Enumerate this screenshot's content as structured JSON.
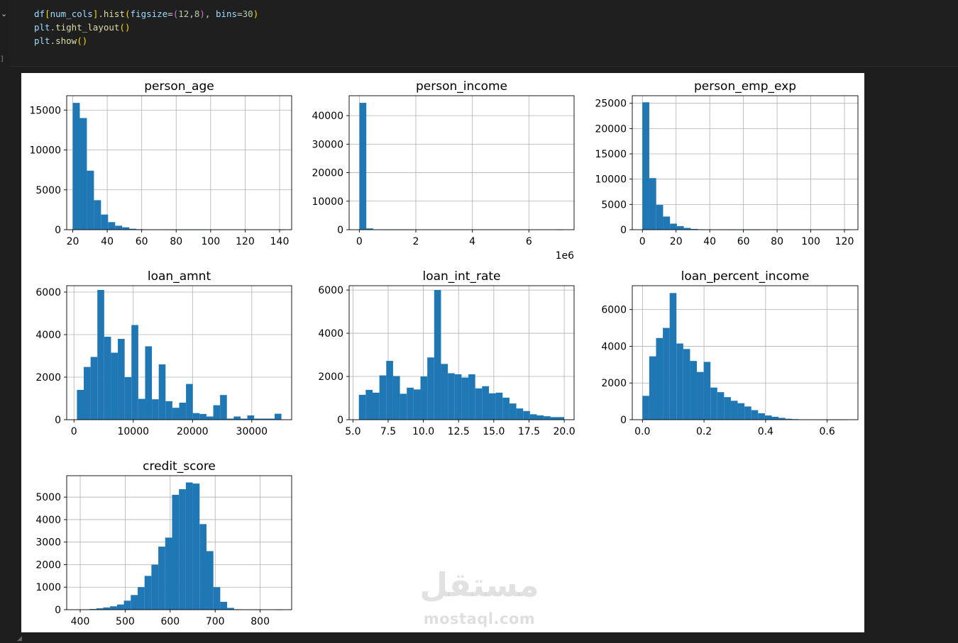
{
  "editor": {
    "exec_marker": "]",
    "code": {
      "line1": {
        "var": "df",
        "lb": "[",
        "arg": "num_cols",
        "rb": "]",
        "dot": ".",
        "func": "hist",
        "lp": "(",
        "kw1": "figsize",
        "eq1": "=",
        "tp": "(",
        "n1": "12",
        "comma1": ",",
        "n2": "8",
        "tpc": ")",
        "comma2": ", ",
        "kw2": "bins",
        "eq2": "=",
        "n3": "30",
        "rp": ")"
      },
      "line2": {
        "obj": "plt",
        "dot": ".",
        "func": "tight_layout",
        "paren": "()"
      },
      "line3": {
        "obj": "plt",
        "dot": ".",
        "func": "show",
        "paren": "()"
      }
    }
  },
  "watermark": {
    "arabic": "مستقل",
    "latin": "mostaql.com"
  },
  "colors": {
    "bar": "#1f77b4",
    "grid": "#b0b0b0",
    "axis": "#000000"
  },
  "chart_data": [
    {
      "type": "bar",
      "title": "person_age",
      "xlim": [
        16.5,
        147
      ],
      "ylim": [
        0,
        16800
      ],
      "xticks": [
        20,
        40,
        60,
        80,
        100,
        120,
        140
      ],
      "xticklabels": [
        "20",
        "40",
        "60",
        "80",
        "100",
        "120",
        "140"
      ],
      "yticks": [
        0,
        5000,
        10000,
        15000
      ],
      "yticklabels": [
        "0",
        "5000",
        "10000",
        "15000"
      ],
      "bin_start": 20,
      "bin_width": 4.1,
      "values": [
        15900,
        14000,
        7400,
        3700,
        1900,
        950,
        500,
        300,
        120,
        60,
        30,
        15,
        10,
        5,
        3,
        2,
        2,
        1,
        1,
        0,
        0,
        0,
        0,
        0,
        0,
        0,
        0,
        0,
        0,
        1
      ]
    },
    {
      "type": "bar",
      "title": "person_income",
      "x_offset_label": "1e6",
      "xlim": [
        -0.36,
        7.6
      ],
      "ylim": [
        0,
        47000
      ],
      "xticks": [
        0,
        2,
        4,
        6
      ],
      "xticklabels": [
        "0",
        "2",
        "4",
        "6"
      ],
      "yticks": [
        0,
        10000,
        20000,
        30000,
        40000
      ],
      "yticklabels": [
        "0",
        "10000",
        "20000",
        "30000",
        "40000"
      ],
      "bin_start": 0.008,
      "bin_width": 0.24,
      "values": [
        44500,
        450,
        30,
        10,
        5,
        2,
        1,
        1,
        0,
        0,
        0,
        0,
        0,
        0,
        0,
        0,
        0,
        0,
        0,
        0,
        0,
        0,
        0,
        0,
        0,
        0,
        0,
        0,
        0,
        1
      ]
    },
    {
      "type": "bar",
      "title": "person_emp_exp",
      "xlim": [
        -6,
        128
      ],
      "ylim": [
        0,
        26500
      ],
      "xticks": [
        0,
        20,
        40,
        60,
        80,
        100,
        120
      ],
      "xticklabels": [
        "0",
        "20",
        "40",
        "60",
        "80",
        "100",
        "120"
      ],
      "yticks": [
        0,
        5000,
        10000,
        15000,
        20000,
        25000
      ],
      "yticklabels": [
        "0",
        "5000",
        "10000",
        "15000",
        "20000",
        "25000"
      ],
      "bin_start": 0,
      "bin_width": 4.1,
      "values": [
        25200,
        10200,
        4900,
        2600,
        1200,
        700,
        350,
        150,
        80,
        40,
        20,
        10,
        5,
        3,
        2,
        1,
        1,
        0,
        0,
        0,
        0,
        0,
        0,
        0,
        0,
        0,
        0,
        0,
        0,
        1
      ]
    },
    {
      "type": "bar",
      "title": "loan_amnt",
      "xlim": [
        -1225,
        36725
      ],
      "ylim": [
        0,
        6300
      ],
      "xticks": [
        0,
        10000,
        20000,
        30000
      ],
      "xticklabels": [
        "0",
        "10000",
        "20000",
        "30000"
      ],
      "yticks": [
        0,
        2000,
        4000,
        6000
      ],
      "yticklabels": [
        "0",
        "2000",
        "4000",
        "6000"
      ],
      "bin_start": 500,
      "bin_width": 1150,
      "values": [
        1400,
        2480,
        2950,
        6100,
        3900,
        3150,
        3800,
        2000,
        4450,
        980,
        3450,
        960,
        2600,
        870,
        560,
        800,
        1680,
        310,
        270,
        150,
        680,
        1160,
        50,
        150,
        50,
        200,
        50,
        50,
        50,
        280
      ]
    },
    {
      "type": "bar",
      "title": "loan_int_rate",
      "xlim": [
        4.73,
        20.7
      ],
      "ylim": [
        0,
        6200
      ],
      "xticks": [
        5.0,
        7.5,
        10.0,
        12.5,
        15.0,
        17.5,
        20.0
      ],
      "xticklabels": [
        "5.0",
        "7.5",
        "10.0",
        "12.5",
        "15.0",
        "17.5",
        "20.0"
      ],
      "yticks": [
        0,
        2000,
        4000,
        6000
      ],
      "yticklabels": [
        "0",
        "2000",
        "4000",
        "6000"
      ],
      "bin_start": 5.42,
      "bin_width": 0.486,
      "values": [
        1150,
        1380,
        1250,
        2050,
        2720,
        2020,
        1200,
        1480,
        1400,
        2000,
        2880,
        6000,
        2580,
        2150,
        2100,
        1950,
        2100,
        1450,
        1550,
        1220,
        1250,
        1020,
        750,
        520,
        400,
        250,
        200,
        160,
        120,
        120
      ]
    },
    {
      "type": "bar",
      "title": "loan_percent_income",
      "xlim": [
        -0.033,
        0.7
      ],
      "ylim": [
        0,
        7300
      ],
      "xticks": [
        0.0,
        0.2,
        0.4,
        0.6
      ],
      "xticklabels": [
        "0.0",
        "0.2",
        "0.4",
        "0.6"
      ],
      "yticks": [
        0,
        2000,
        4000,
        6000
      ],
      "yticklabels": [
        "0",
        "2000",
        "4000",
        "6000"
      ],
      "bin_start": 0,
      "bin_width": 0.0221,
      "values": [
        1300,
        3450,
        4450,
        5000,
        6900,
        4150,
        3850,
        3200,
        2600,
        3150,
        1750,
        1500,
        1230,
        1030,
        900,
        720,
        520,
        350,
        230,
        160,
        100,
        50,
        30,
        20,
        10,
        5,
        3,
        2,
        1,
        1
      ]
    },
    {
      "type": "bar",
      "title": "credit_score",
      "xlim": [
        370,
        870
      ],
      "ylim": [
        0,
        5950
      ],
      "xticks": [
        400,
        500,
        600,
        700,
        800
      ],
      "xticklabels": [
        "400",
        "500",
        "600",
        "700",
        "800"
      ],
      "yticks": [
        0,
        1000,
        2000,
        3000,
        4000,
        5000
      ],
      "yticklabels": [
        "0",
        "1000",
        "2000",
        "3000",
        "4000",
        "5000"
      ],
      "bin_start": 390,
      "bin_width": 15.3,
      "values": [
        5,
        10,
        30,
        60,
        100,
        150,
        230,
        400,
        650,
        1000,
        1500,
        2000,
        2800,
        3200,
        5100,
        5350,
        5650,
        5600,
        3800,
        2600,
        1000,
        350,
        80,
        20,
        5,
        2,
        1,
        0,
        0,
        1
      ]
    }
  ]
}
